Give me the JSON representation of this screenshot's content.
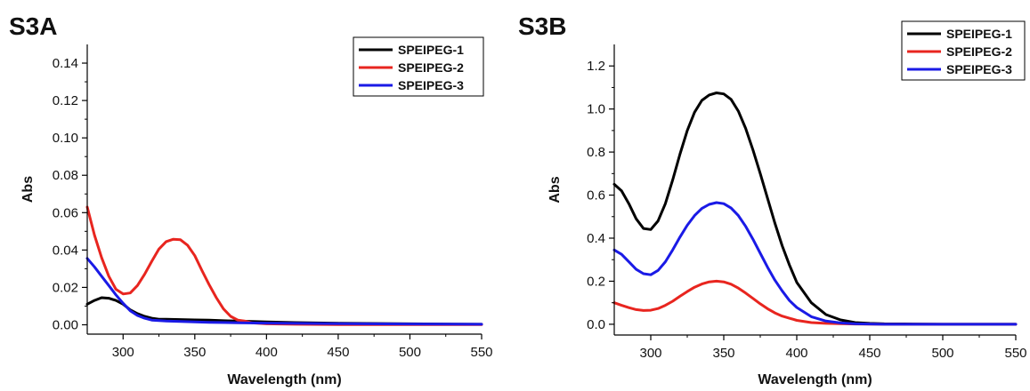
{
  "chart_data": [
    {
      "panel_label": "S3A",
      "type": "line",
      "xlabel": "Wavelength (nm)",
      "ylabel": "Abs",
      "xlim": [
        275,
        550
      ],
      "ylim": [
        -0.005,
        0.15
      ],
      "xticks": [
        300,
        350,
        400,
        450,
        500,
        550
      ],
      "yticks": [
        0.0,
        0.02,
        0.04,
        0.06,
        0.08,
        0.1,
        0.12,
        0.14
      ],
      "ytick_decimals": 2,
      "legend_position": "top-right",
      "series": [
        {
          "name": "SPEIPEG-1",
          "color": "#000000",
          "x": [
            275,
            280,
            285,
            290,
            295,
            300,
            305,
            310,
            315,
            320,
            325,
            330,
            340,
            350,
            360,
            370,
            380,
            390,
            400,
            420,
            450,
            500,
            550
          ],
          "y": [
            0.011,
            0.013,
            0.0145,
            0.0142,
            0.013,
            0.011,
            0.008,
            0.006,
            0.0045,
            0.0035,
            0.003,
            0.003,
            0.0028,
            0.0026,
            0.0025,
            0.0022,
            0.002,
            0.0018,
            0.0015,
            0.0012,
            0.0008,
            0.0005,
            0.0003
          ]
        },
        {
          "name": "SPEIPEG-2",
          "color": "#e8251f",
          "x": [
            275,
            280,
            285,
            290,
            295,
            300,
            305,
            310,
            315,
            320,
            325,
            330,
            335,
            340,
            345,
            350,
            355,
            360,
            365,
            370,
            375,
            380,
            385,
            390,
            400,
            420,
            450,
            500,
            550
          ],
          "y": [
            0.063,
            0.048,
            0.036,
            0.026,
            0.019,
            0.0165,
            0.017,
            0.021,
            0.027,
            0.034,
            0.0405,
            0.0445,
            0.0458,
            0.0455,
            0.0425,
            0.037,
            0.029,
            0.0215,
            0.0145,
            0.0085,
            0.0045,
            0.0025,
            0.002,
            0.001,
            0.0005,
            0.0003,
            0.0001,
            0.0001,
            0.0001
          ]
        },
        {
          "name": "SPEIPEG-3",
          "color": "#1a1ae6",
          "x": [
            275,
            280,
            285,
            290,
            295,
            300,
            305,
            310,
            315,
            320,
            330,
            340,
            350,
            360,
            380,
            400,
            450,
            500,
            550
          ],
          "y": [
            0.0355,
            0.031,
            0.026,
            0.021,
            0.016,
            0.0115,
            0.0075,
            0.005,
            0.0035,
            0.0025,
            0.002,
            0.0018,
            0.0015,
            0.0013,
            0.0011,
            0.0009,
            0.0006,
            0.0004,
            0.0003
          ]
        }
      ]
    },
    {
      "panel_label": "S3B",
      "type": "line",
      "xlabel": "Wavelength (nm)",
      "ylabel": "Abs",
      "xlim": [
        275,
        550
      ],
      "ylim": [
        -0.05,
        1.3
      ],
      "xticks": [
        300,
        350,
        400,
        450,
        500,
        550
      ],
      "yticks": [
        0.0,
        0.2,
        0.4,
        0.6,
        0.8,
        1.0,
        1.2
      ],
      "ytick_decimals": 1,
      "legend_position": "top-right",
      "series": [
        {
          "name": "SPEIPEG-1",
          "color": "#000000",
          "x": [
            275,
            280,
            285,
            290,
            295,
            300,
            305,
            310,
            315,
            320,
            325,
            330,
            335,
            340,
            345,
            350,
            355,
            360,
            365,
            370,
            375,
            380,
            385,
            390,
            395,
            400,
            410,
            420,
            430,
            440,
            450,
            460,
            480,
            500,
            550
          ],
          "y": [
            0.65,
            0.62,
            0.56,
            0.49,
            0.445,
            0.44,
            0.48,
            0.56,
            0.67,
            0.79,
            0.9,
            0.985,
            1.04,
            1.065,
            1.075,
            1.07,
            1.045,
            0.99,
            0.91,
            0.81,
            0.7,
            0.585,
            0.47,
            0.365,
            0.275,
            0.195,
            0.1,
            0.045,
            0.02,
            0.008,
            0.004,
            0.002,
            0.001,
            0.0,
            0.0
          ]
        },
        {
          "name": "SPEIPEG-2",
          "color": "#e8251f",
          "x": [
            275,
            280,
            285,
            290,
            295,
            300,
            305,
            310,
            315,
            320,
            325,
            330,
            335,
            340,
            345,
            350,
            355,
            360,
            365,
            370,
            375,
            380,
            385,
            390,
            400,
            410,
            420,
            440,
            460,
            500,
            550
          ],
          "y": [
            0.1,
            0.088,
            0.077,
            0.068,
            0.064,
            0.065,
            0.073,
            0.088,
            0.107,
            0.13,
            0.152,
            0.172,
            0.187,
            0.197,
            0.2,
            0.197,
            0.186,
            0.168,
            0.145,
            0.12,
            0.095,
            0.072,
            0.053,
            0.038,
            0.018,
            0.008,
            0.004,
            0.001,
            0.0,
            0.0,
            0.0
          ]
        },
        {
          "name": "SPEIPEG-3",
          "color": "#1a1ae6",
          "x": [
            275,
            280,
            285,
            290,
            295,
            300,
            305,
            310,
            315,
            320,
            325,
            330,
            335,
            340,
            345,
            350,
            355,
            360,
            365,
            370,
            375,
            380,
            385,
            390,
            395,
            400,
            410,
            420,
            430,
            440,
            450,
            460,
            480,
            500,
            550
          ],
          "y": [
            0.345,
            0.325,
            0.29,
            0.255,
            0.235,
            0.23,
            0.25,
            0.29,
            0.345,
            0.405,
            0.46,
            0.505,
            0.538,
            0.557,
            0.565,
            0.56,
            0.54,
            0.505,
            0.455,
            0.395,
            0.33,
            0.265,
            0.205,
            0.155,
            0.11,
            0.078,
            0.035,
            0.015,
            0.006,
            0.002,
            0.001,
            0.0,
            0.0,
            0.0,
            0.0
          ]
        }
      ]
    }
  ]
}
